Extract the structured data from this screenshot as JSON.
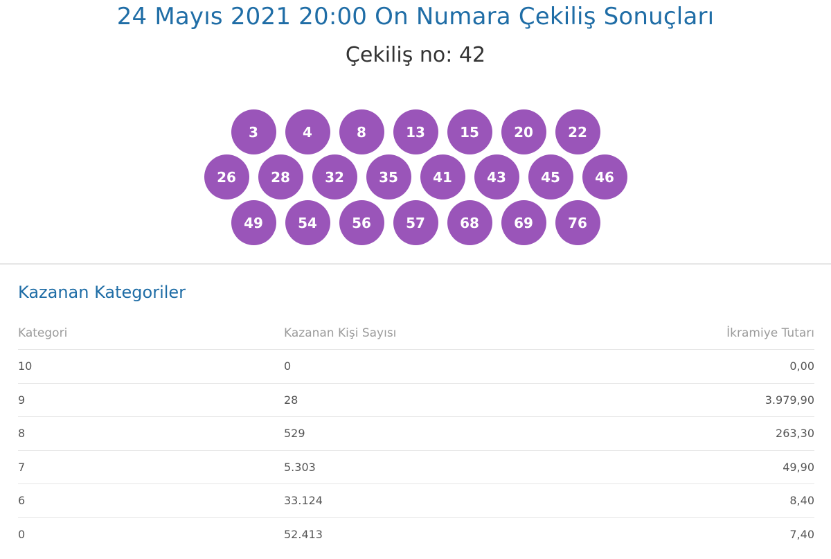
{
  "header": {
    "title": "24 Mayıs 2021 20:00 On Numara Çekiliş Sonuçları",
    "draw_number": "Çekiliş no: 42"
  },
  "balls": {
    "row1": [
      "3",
      "4",
      "8",
      "13",
      "15",
      "20",
      "22"
    ],
    "row2": [
      "26",
      "28",
      "32",
      "35",
      "41",
      "43",
      "45",
      "46"
    ],
    "row3": [
      "49",
      "54",
      "56",
      "57",
      "68",
      "69",
      "76"
    ]
  },
  "colors": {
    "ball": "#9a55b9",
    "title": "#1f6da6"
  },
  "winners": {
    "title": "Kazanan Kategoriler",
    "columns": [
      "Kategori",
      "Kazanan Kişi Sayısı",
      "İkramiye Tutarı"
    ],
    "rows": [
      [
        "10",
        "0",
        "0,00"
      ],
      [
        "9",
        "28",
        "3.979,90"
      ],
      [
        "8",
        "529",
        "263,30"
      ],
      [
        "7",
        "5.303",
        "49,90"
      ],
      [
        "6",
        "33.124",
        "8,40"
      ],
      [
        "0",
        "52.413",
        "7,40"
      ]
    ]
  }
}
